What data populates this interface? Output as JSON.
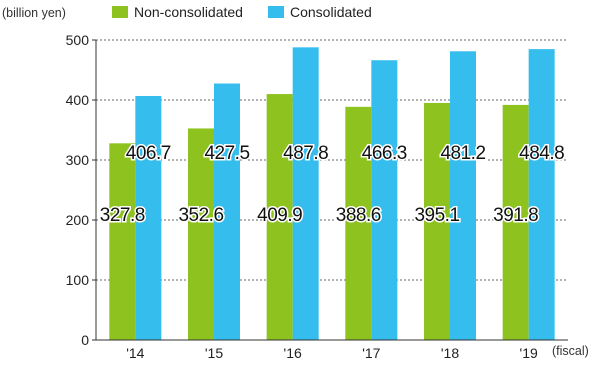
{
  "chart_data": {
    "type": "bar",
    "unit_label": "(billion yen)",
    "x_unit_label": "(fiscal)",
    "categories": [
      "'14",
      "'15",
      "'16",
      "'17",
      "'18",
      "'19"
    ],
    "series": [
      {
        "name": "Non-consolidated",
        "color": "#8dc21f",
        "values": [
          327.8,
          352.6,
          409.9,
          388.6,
          395.1,
          391.8
        ],
        "labels": [
          "327.8",
          "352.6",
          "409.9",
          "388.6",
          "395.1",
          "391.8"
        ]
      },
      {
        "name": "Consolidated",
        "color": "#35bdee",
        "values": [
          406.7,
          427.5,
          487.8,
          466.3,
          481.2,
          484.8
        ],
        "labels": [
          "406.7",
          "427.5",
          "487.8",
          "466.3",
          "481.2",
          "484.8"
        ]
      }
    ],
    "ylim": [
      0,
      500
    ],
    "yticks": [
      "0",
      "100",
      "200",
      "300",
      "400",
      "500"
    ],
    "grid": "dotted horizontal",
    "legend": "top"
  }
}
